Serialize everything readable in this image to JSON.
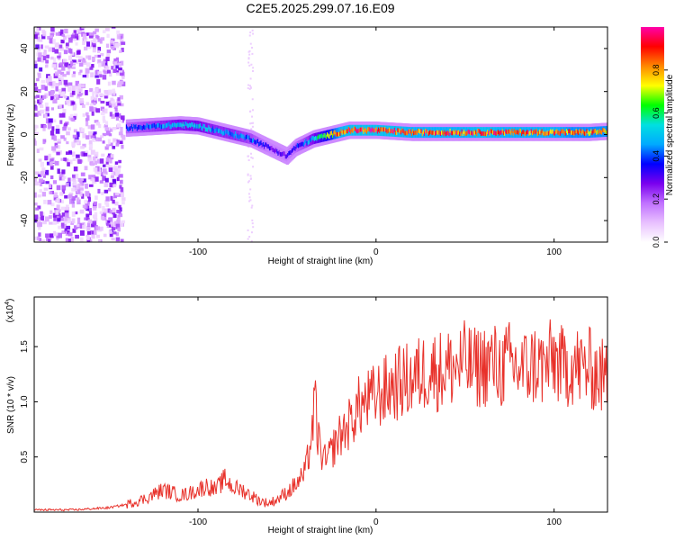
{
  "figure_title": "C2E5.2025.299.07.16.E09",
  "chart_data": [
    {
      "type": "heatmap",
      "title": "C2E5.2025.299.07.16.E09",
      "xlabel": "Height of straight line (km)",
      "ylabel": "Frequency (Hz)",
      "xlim": [
        -192,
        130
      ],
      "ylim": [
        -50,
        50
      ],
      "x_ticks": [
        -100,
        0,
        100
      ],
      "x_tick_labels": [
        "-100",
        "0",
        "100"
      ],
      "y_ticks": [
        -40,
        -20,
        0,
        20,
        40
      ],
      "y_tick_labels": [
        "-40",
        "-20",
        "0",
        "20",
        "40"
      ],
      "colorbar": {
        "label": "Normalized spectral amplitude",
        "range": [
          0,
          1
        ],
        "ticks": [
          0.0,
          0.2,
          0.4,
          0.6,
          0.8
        ],
        "tick_labels": [
          "0.0",
          "0.2",
          "0.4",
          "0.6",
          "0.8"
        ],
        "colormap": [
          "#ffffff",
          "#e8c0ff",
          "#c070ff",
          "#7a00ee",
          "#0000ff",
          "#00aaff",
          "#00e0e0",
          "#00ff00",
          "#ffff00",
          "#ff8800",
          "#ff0000",
          "#ff00aa"
        ]
      },
      "doppler_track": {
        "x": [
          -140,
          -130,
          -120,
          -110,
          -100,
          -90,
          -80,
          -70,
          -60,
          -55,
          -50,
          -45,
          -40,
          -35,
          -30,
          -25,
          -20,
          -15,
          -10,
          -5,
          0,
          10,
          20,
          30,
          40,
          50,
          60,
          70,
          80,
          90,
          100,
          110,
          120,
          130
        ],
        "freq_hz": [
          3,
          3.5,
          4,
          4.5,
          4,
          2,
          0,
          -2,
          -6,
          -8,
          -10,
          -6,
          -4,
          -2,
          -1,
          0,
          1,
          2,
          2,
          2,
          2,
          1.5,
          1,
          1,
          1,
          1,
          1,
          1,
          1,
          1,
          1,
          1,
          1,
          1.5
        ],
        "normalized_amplitude": [
          0.35,
          0.4,
          0.45,
          0.5,
          0.5,
          0.45,
          0.45,
          0.4,
          0.3,
          0.3,
          0.3,
          0.35,
          0.4,
          0.5,
          0.6,
          0.7,
          0.85,
          0.9,
          0.9,
          0.9,
          0.9,
          0.9,
          0.85,
          0.85,
          0.85,
          0.85,
          0.9,
          0.85,
          0.85,
          0.85,
          0.85,
          0.8,
          0.8,
          0.8
        ]
      }
    },
    {
      "type": "line",
      "xlabel": "Height of straight line (km)",
      "ylabel": "SNR (10 * v/v)",
      "y_scale_label": "(x10",
      "y_scale_exponent": "4",
      "y_scale_suffix": ")",
      "xlim": [
        -192,
        130
      ],
      "ylim": [
        0,
        1.95
      ],
      "x_ticks": [
        -100,
        0,
        100
      ],
      "x_tick_labels": [
        "-100",
        "0",
        "100"
      ],
      "y_ticks": [
        0.5,
        1.0,
        1.5
      ],
      "y_tick_labels": [
        "0.5",
        "1.0",
        "1.5"
      ],
      "series": [
        {
          "name": "SNR",
          "color": "#e8312a",
          "x": [
            -192,
            -180,
            -170,
            -160,
            -150,
            -140,
            -130,
            -125,
            -120,
            -115,
            -110,
            -105,
            -100,
            -95,
            -90,
            -85,
            -80,
            -75,
            -70,
            -65,
            -60,
            -55,
            -50,
            -45,
            -40,
            -37,
            -34,
            -33,
            -30,
            -28,
            -25,
            -22,
            -20,
            -15,
            -10,
            -5,
            0,
            5,
            10,
            15,
            20,
            25,
            30,
            35,
            40,
            45,
            50,
            55,
            60,
            65,
            70,
            75,
            80,
            85,
            90,
            95,
            100,
            105,
            110,
            115,
            120,
            125,
            130
          ],
          "values": [
            0.02,
            0.02,
            0.02,
            0.03,
            0.04,
            0.07,
            0.12,
            0.16,
            0.2,
            0.18,
            0.15,
            0.17,
            0.2,
            0.24,
            0.2,
            0.3,
            0.22,
            0.2,
            0.15,
            0.1,
            0.08,
            0.12,
            0.18,
            0.25,
            0.35,
            0.6,
            1.0,
            0.7,
            0.5,
            0.45,
            0.55,
            0.65,
            0.7,
            0.8,
            0.95,
            1.0,
            1.05,
            1.1,
            1.15,
            1.18,
            1.2,
            1.25,
            1.3,
            1.28,
            1.3,
            1.32,
            1.35,
            1.3,
            1.33,
            1.35,
            1.3,
            1.35,
            1.3,
            1.3,
            1.35,
            1.3,
            1.4,
            1.3,
            1.35,
            1.3,
            1.3,
            1.25,
            1.2
          ]
        }
      ]
    }
  ]
}
